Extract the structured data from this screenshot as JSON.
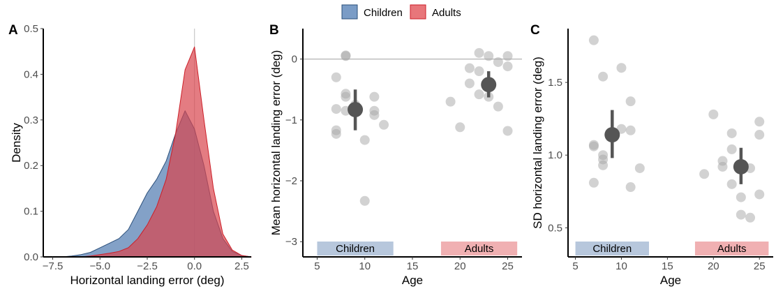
{
  "legend": {
    "items": [
      {
        "label": "Children",
        "color": "#7a9cc6",
        "edge": "#2b4f7a"
      },
      {
        "label": "Adults",
        "color": "#e8767a",
        "edge": "#cc1f28"
      }
    ],
    "placement": "top-center"
  },
  "chart_data": [
    {
      "panel": "A",
      "type": "area",
      "xlabel": "Horizontal landing error (deg)",
      "ylabel": "Density",
      "xlim": [
        -8,
        3
      ],
      "ylim": [
        0,
        0.5
      ],
      "xticks": [
        "−7.5",
        "−5.0",
        "−2.5",
        "0.0",
        "2.5"
      ],
      "yticks": [
        "0.0",
        "0.1",
        "0.2",
        "0.3",
        "0.4",
        "0.5"
      ],
      "reference_line_x": 0,
      "grid": false,
      "series": [
        {
          "name": "Children",
          "color": "#5a82b4",
          "x": [
            -7.0,
            -6.5,
            -6.0,
            -5.5,
            -5.0,
            -4.5,
            -4.0,
            -3.5,
            -3.0,
            -2.5,
            -2.0,
            -1.5,
            -1.0,
            -0.5,
            0.0,
            0.5,
            1.0,
            1.5,
            2.0,
            2.5,
            3.0
          ],
          "y": [
            0.0,
            0.002,
            0.005,
            0.01,
            0.02,
            0.03,
            0.04,
            0.06,
            0.1,
            0.14,
            0.17,
            0.21,
            0.27,
            0.32,
            0.28,
            0.2,
            0.1,
            0.04,
            0.012,
            0.003,
            0.0
          ]
        },
        {
          "name": "Adults",
          "color": "#d9454d",
          "x": [
            -7.0,
            -6.0,
            -5.5,
            -5.0,
            -4.5,
            -4.0,
            -3.5,
            -3.0,
            -2.5,
            -2.0,
            -1.5,
            -1.0,
            -0.5,
            0.0,
            0.5,
            1.0,
            1.5,
            2.0,
            2.5,
            3.0
          ],
          "y": [
            0.0,
            0.0,
            0.002,
            0.005,
            0.008,
            0.012,
            0.02,
            0.04,
            0.07,
            0.11,
            0.17,
            0.27,
            0.41,
            0.46,
            0.3,
            0.15,
            0.05,
            0.015,
            0.003,
            0.0
          ]
        }
      ]
    },
    {
      "panel": "B",
      "type": "scatter",
      "xlabel": "Age",
      "ylabel": "Mean horizontal landing error (deg)",
      "xlim": [
        3.5,
        26.5
      ],
      "ylim": [
        -3.25,
        0.5
      ],
      "xticks": [
        "5",
        "10",
        "15",
        "20",
        "25"
      ],
      "yticks": [
        "0",
        "−1",
        "−2",
        "−3"
      ],
      "reference_line_y": 0,
      "group_labels": [
        {
          "label": "Children",
          "x_range": [
            5,
            13
          ],
          "color": "#b7c7dc"
        },
        {
          "label": "Adults",
          "x_range": [
            18,
            26
          ],
          "color": "#f0b0b2"
        }
      ],
      "points": [
        {
          "x": 7,
          "y": -0.3
        },
        {
          "x": 7,
          "y": -0.82
        },
        {
          "x": 7,
          "y": -1.17
        },
        {
          "x": 7,
          "y": -1.23
        },
        {
          "x": 8,
          "y": 0.05
        },
        {
          "x": 8,
          "y": 0.06
        },
        {
          "x": 8,
          "y": -0.57
        },
        {
          "x": 8,
          "y": -0.62
        },
        {
          "x": 8,
          "y": -0.85
        },
        {
          "x": 9,
          "y": -0.75
        },
        {
          "x": 10,
          "y": -1.33
        },
        {
          "x": 10,
          "y": -2.33
        },
        {
          "x": 11,
          "y": -0.62
        },
        {
          "x": 11,
          "y": -0.85
        },
        {
          "x": 11,
          "y": -0.92
        },
        {
          "x": 12,
          "y": -1.08
        },
        {
          "x": 19,
          "y": -0.7
        },
        {
          "x": 20,
          "y": -1.12
        },
        {
          "x": 21,
          "y": -0.15
        },
        {
          "x": 21,
          "y": -0.4
        },
        {
          "x": 22,
          "y": 0.1
        },
        {
          "x": 22,
          "y": -0.2
        },
        {
          "x": 22,
          "y": -0.58
        },
        {
          "x": 23,
          "y": 0.05
        },
        {
          "x": 23,
          "y": -0.62
        },
        {
          "x": 24,
          "y": -0.05
        },
        {
          "x": 24,
          "y": -0.78
        },
        {
          "x": 25,
          "y": 0.05
        },
        {
          "x": 25,
          "y": -0.12
        },
        {
          "x": 25,
          "y": -1.18
        }
      ],
      "summary": [
        {
          "group": "Children",
          "x": 9,
          "mean": -0.83,
          "lower": -1.17,
          "upper": -0.5
        },
        {
          "group": "Adults",
          "x": 23,
          "mean": -0.42,
          "lower": -0.63,
          "upper": -0.2
        }
      ]
    },
    {
      "panel": "C",
      "type": "scatter",
      "xlabel": "Age",
      "ylabel": "SD horizontal landing error (deg)",
      "xlim": [
        4.2,
        26.5
      ],
      "ylim": [
        0.3,
        1.87
      ],
      "xticks": [
        "5",
        "10",
        "15",
        "20",
        "25"
      ],
      "yticks": [
        "0.5",
        "1.0",
        "1.5"
      ],
      "group_labels": [
        {
          "label": "Children",
          "x_range": [
            5,
            13
          ],
          "color": "#b7c7dc"
        },
        {
          "label": "Adults",
          "x_range": [
            18,
            26
          ],
          "color": "#f0b0b2"
        }
      ],
      "points": [
        {
          "x": 7,
          "y": 1.79
        },
        {
          "x": 7,
          "y": 1.07
        },
        {
          "x": 7,
          "y": 1.06
        },
        {
          "x": 7,
          "y": 0.81
        },
        {
          "x": 8,
          "y": 1.54
        },
        {
          "x": 8,
          "y": 1.0
        },
        {
          "x": 8,
          "y": 0.97
        },
        {
          "x": 8,
          "y": 0.93
        },
        {
          "x": 10,
          "y": 1.6
        },
        {
          "x": 10,
          "y": 1.18
        },
        {
          "x": 11,
          "y": 1.37
        },
        {
          "x": 11,
          "y": 1.17
        },
        {
          "x": 11,
          "y": 0.78
        },
        {
          "x": 12,
          "y": 0.91
        },
        {
          "x": 19,
          "y": 0.87
        },
        {
          "x": 20,
          "y": 1.28
        },
        {
          "x": 21,
          "y": 0.96
        },
        {
          "x": 21,
          "y": 0.92
        },
        {
          "x": 22,
          "y": 1.15
        },
        {
          "x": 22,
          "y": 1.04
        },
        {
          "x": 22,
          "y": 0.8
        },
        {
          "x": 23,
          "y": 0.71
        },
        {
          "x": 23,
          "y": 0.59
        },
        {
          "x": 24,
          "y": 0.91
        },
        {
          "x": 24,
          "y": 0.57
        },
        {
          "x": 25,
          "y": 1.23
        },
        {
          "x": 25,
          "y": 1.14
        },
        {
          "x": 25,
          "y": 0.73
        }
      ],
      "summary": [
        {
          "group": "Children",
          "x": 9,
          "mean": 1.14,
          "lower": 0.98,
          "upper": 1.31
        },
        {
          "group": "Adults",
          "x": 23,
          "mean": 0.92,
          "lower": 0.8,
          "upper": 1.05
        }
      ]
    }
  ]
}
